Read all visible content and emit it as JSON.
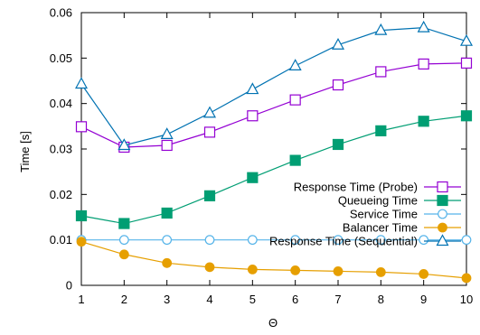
{
  "chart_data": {
    "type": "line",
    "xlabel": "Θ",
    "ylabel": "Time [s]",
    "xlim": [
      1,
      10
    ],
    "ylim": [
      0,
      0.06
    ],
    "xticks": [
      "1",
      "2",
      "3",
      "4",
      "5",
      "6",
      "7",
      "8",
      "9",
      "10"
    ],
    "yticks": [
      "0",
      "0.01",
      "0.02",
      "0.03",
      "0.04",
      "0.05",
      "0.06"
    ],
    "grid": false,
    "legend_position": "center-right",
    "x": [
      1,
      2,
      3,
      4,
      5,
      6,
      7,
      8,
      9,
      10
    ],
    "series": [
      {
        "name": "Response Time (Probe)",
        "color": "#9400d3",
        "marker": "open-square",
        "values": [
          0.0349,
          0.0304,
          0.0308,
          0.0337,
          0.0373,
          0.0408,
          0.0441,
          0.047,
          0.0487,
          0.0489
        ]
      },
      {
        "name": "Queueing Time",
        "color": "#009e73",
        "marker": "filled-square",
        "values": [
          0.0153,
          0.0136,
          0.0159,
          0.0197,
          0.0237,
          0.0275,
          0.031,
          0.034,
          0.0361,
          0.0373
        ]
      },
      {
        "name": "Service Time",
        "color": "#56b4e9",
        "marker": "open-circle",
        "values": [
          0.01,
          0.01,
          0.01,
          0.01,
          0.01,
          0.01,
          0.01,
          0.01,
          0.01,
          0.01
        ]
      },
      {
        "name": "Balancer Time",
        "color": "#e69f00",
        "marker": "filled-circle",
        "values": [
          0.0096,
          0.0068,
          0.0049,
          0.004,
          0.0035,
          0.0033,
          0.0031,
          0.0029,
          0.0025,
          0.0016
        ]
      },
      {
        "name": "Response Time (Sequential)",
        "color": "#0072b2",
        "marker": "open-triangle",
        "values": [
          0.0443,
          0.0308,
          0.0332,
          0.0379,
          0.0431,
          0.0483,
          0.0529,
          0.0561,
          0.0567,
          0.0537
        ]
      }
    ]
  }
}
